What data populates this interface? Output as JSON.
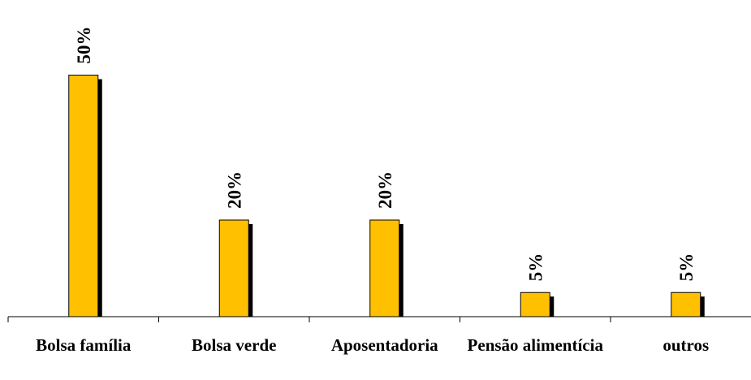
{
  "chart_data": {
    "type": "bar",
    "categories": [
      "Bolsa família",
      "Bolsa verde",
      "Aposentadoria",
      "Pensão alimentícia",
      "outros"
    ],
    "values": [
      50,
      20,
      20,
      5,
      5
    ],
    "value_labels": [
      "50%",
      "20%",
      "20%",
      "5%",
      "5%"
    ],
    "color": "#ffc000",
    "ylim": [
      0,
      60
    ]
  }
}
